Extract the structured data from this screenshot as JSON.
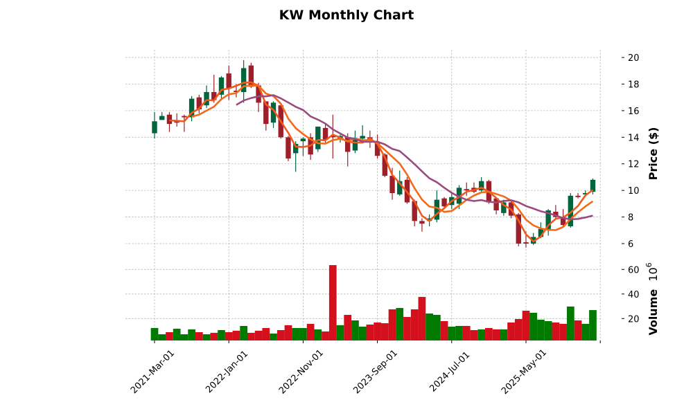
{
  "chart_data": {
    "type": "candlestick",
    "title": "KW Monthly Chart",
    "ylabel": "Price ($)",
    "volume_label": "Volume",
    "volume_exponent": "6",
    "volume_base": "10",
    "ylim": [
      5.5,
      20.6
    ],
    "volume_ylim": [
      2.7,
      66
    ],
    "grid": true,
    "x": [
      "2021-03",
      "2021-04",
      "2021-05",
      "2021-06",
      "2021-07",
      "2021-08",
      "2021-09",
      "2021-10",
      "2021-11",
      "2021-12",
      "2022-01",
      "2022-02",
      "2022-03",
      "2022-04",
      "2022-05",
      "2022-06",
      "2022-07",
      "2022-08",
      "2022-09",
      "2022-10",
      "2022-11",
      "2022-12",
      "2023-01",
      "2023-02",
      "2023-03",
      "2023-04",
      "2023-05",
      "2023-06",
      "2023-07",
      "2023-08",
      "2023-09",
      "2023-10",
      "2023-11",
      "2023-12",
      "2024-01",
      "2024-02",
      "2024-03",
      "2024-04",
      "2024-05",
      "2024-06",
      "2024-07",
      "2024-08",
      "2024-09",
      "2024-10",
      "2024-11",
      "2024-12",
      "2025-01",
      "2025-02",
      "2025-03",
      "2025-04",
      "2025-05",
      "2025-06",
      "2025-07",
      "2025-08",
      "2025-09",
      "2025-10",
      "2025-11",
      "2025-12",
      "2026-01",
      "2026-02"
    ],
    "x_tick_index": [
      0,
      10,
      20,
      30,
      40,
      50
    ],
    "x_tick_labels": [
      "2021-Mar-01",
      "2022-Jan-01",
      "2022-Nov-01",
      "2023-Sep-01",
      "2024-Jul-01",
      "2025-May-01"
    ],
    "y_ticks": [
      6,
      8,
      10,
      12,
      14,
      16,
      18,
      20
    ],
    "volume_ticks": [
      20,
      40,
      60
    ],
    "open": [
      14.3,
      15.3,
      15.7,
      15.2,
      15.6,
      15.5,
      17.0,
      16.4,
      17.4,
      17.2,
      18.8,
      17.5,
      17.4,
      19.4,
      17.9,
      16.7,
      15.1,
      16.4,
      14.0,
      12.8,
      13.7,
      14.0,
      13.1,
      14.7,
      14.1,
      13.9,
      14.0,
      13.0,
      13.9,
      14.0,
      13.6,
      12.7,
      11.1,
      9.7,
      10.8,
      9.2,
      7.7,
      7.7,
      7.8,
      9.4,
      8.9,
      9.0,
      10.1,
      10.2,
      10.0,
      10.7,
      9.4,
      8.3,
      9.1,
      8.2,
      6.1,
      6.0,
      6.5,
      7.1,
      8.4,
      8.0,
      7.3,
      9.6,
      9.7,
      9.9
    ],
    "high": [
      15.9,
      15.9,
      15.9,
      15.8,
      15.7,
      17.1,
      17.2,
      17.9,
      18.7,
      18.6,
      19.4,
      18.0,
      19.8,
      19.6,
      18.1,
      16.7,
      16.7,
      16.6,
      14.1,
      13.7,
      14.0,
      14.3,
      14.8,
      15.0,
      15.7,
      14.2,
      14.3,
      14.5,
      14.9,
      14.5,
      14.2,
      12.8,
      11.7,
      11.5,
      11.0,
      9.3,
      7.9,
      8.2,
      10.0,
      9.5,
      9.9,
      10.4,
      10.6,
      10.6,
      11.0,
      10.8,
      9.5,
      9.3,
      9.3,
      8.3,
      6.9,
      6.8,
      7.6,
      8.6,
      8.9,
      8.6,
      9.8,
      9.8,
      10.0,
      10.9
    ],
    "low": [
      13.9,
      15.4,
      14.4,
      14.8,
      14.4,
      15.2,
      15.8,
      16.2,
      16.6,
      16.9,
      16.8,
      17.0,
      16.6,
      17.7,
      15.9,
      14.5,
      14.7,
      13.9,
      12.2,
      11.4,
      12.6,
      12.3,
      12.9,
      13.6,
      12.4,
      13.6,
      11.8,
      12.8,
      13.6,
      13.2,
      12.4,
      11.0,
      9.3,
      9.6,
      9.0,
      7.3,
      6.9,
      7.3,
      7.6,
      8.7,
      8.6,
      8.6,
      9.6,
      9.8,
      9.8,
      9.0,
      8.2,
      8.1,
      7.9,
      5.8,
      5.7,
      5.9,
      6.4,
      6.6,
      7.9,
      7.3,
      7.2,
      9.4,
      9.5,
      9.7
    ],
    "close": [
      15.2,
      15.6,
      15.0,
      15.1,
      15.5,
      16.9,
      16.1,
      17.4,
      16.8,
      18.5,
      17.7,
      17.4,
      19.2,
      17.8,
      16.6,
      15.0,
      16.6,
      14.0,
      12.4,
      13.5,
      13.9,
      12.7,
      14.8,
      13.8,
      14.0,
      14.1,
      12.9,
      13.8,
      14.1,
      13.8,
      12.6,
      11.1,
      9.8,
      10.7,
      9.1,
      7.7,
      7.5,
      7.9,
      9.3,
      8.8,
      9.5,
      10.2,
      10.0,
      9.9,
      10.7,
      9.1,
      8.5,
      9.1,
      8.1,
      6.0,
      6.0,
      6.5,
      7.1,
      8.5,
      8.0,
      7.4,
      9.6,
      9.5,
      9.8,
      10.8
    ],
    "volume": [
      12.3,
      7.2,
      8.9,
      11.7,
      7.2,
      11.2,
      8.9,
      7.2,
      8.4,
      10.6,
      8.9,
      10.1,
      14.0,
      8.4,
      10.1,
      12.3,
      7.8,
      10.6,
      14.6,
      12.3,
      12.3,
      15.7,
      11.2,
      9.5,
      63.5,
      14.6,
      23.0,
      18.5,
      13.4,
      15.1,
      16.8,
      16.2,
      27.5,
      28.6,
      21.3,
      27.5,
      37.6,
      24.1,
      23.0,
      17.9,
      13.4,
      14.0,
      14.0,
      10.6,
      11.2,
      12.3,
      11.2,
      11.2,
      16.8,
      19.6,
      26.4,
      24.7,
      19.1,
      17.9,
      16.8,
      15.7,
      29.8,
      18.5,
      15.7,
      26.9
    ],
    "volume_up": [
      1,
      1,
      0,
      1,
      1,
      1,
      0,
      1,
      0,
      1,
      0,
      0,
      1,
      0,
      0,
      0,
      1,
      0,
      0,
      1,
      1,
      0,
      1,
      0,
      0,
      1,
      0,
      1,
      1,
      0,
      0,
      0,
      0,
      1,
      0,
      0,
      0,
      1,
      1,
      0,
      1,
      1,
      0,
      0,
      1,
      0,
      0,
      1,
      0,
      0,
      0,
      1,
      1,
      1,
      0,
      0,
      1,
      0,
      1,
      1
    ],
    "moving_averages": [
      {
        "period": 3,
        "color": "#f05a1e"
      },
      {
        "period": 6,
        "color": "#f26b1b"
      },
      {
        "period": 12,
        "color": "#9c4a7e"
      }
    ],
    "colors": {
      "up": "#00643c",
      "down": "#9c1f2a",
      "vol_up": "#007a00",
      "vol_down": "#d4101c"
    }
  }
}
